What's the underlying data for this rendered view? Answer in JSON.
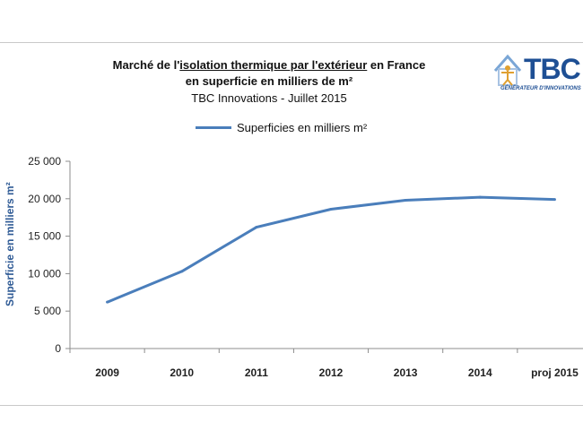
{
  "header": {
    "title_prefix": "Marché de l'",
    "title_underlined_1": "isolation  thermique par l'extérieur",
    "title_suffix": " en France",
    "title_line2": "en superficie  en milliers de m²",
    "subtitle": "TBC Innovations - Juillet 2015"
  },
  "logo": {
    "text": "TBC",
    "tagline": "GÉNÉRATEUR D'INNOVATIONS",
    "color": "#1e4f94"
  },
  "chart_data": {
    "type": "line",
    "title": "Marché de l'isolation  thermique par l'extérieur en France en superficie  en milliers de m²",
    "subtitle": "TBC Innovations - Juillet 2015",
    "categories": [
      "2009",
      "2010",
      "2011",
      "2012",
      "2013",
      "2014",
      "proj 2015"
    ],
    "series": [
      {
        "name": "Superficies en milliers m²",
        "values": [
          6200,
          10300,
          16200,
          18600,
          19800,
          20200,
          19900
        ],
        "color": "#4a7ebb"
      }
    ],
    "xlabel": "",
    "ylabel": "Superficie en milliers m²",
    "ylim": [
      0,
      25000
    ],
    "yticks": [
      0,
      5000,
      10000,
      15000,
      20000,
      25000
    ],
    "ytick_labels": [
      "0",
      "5 000",
      "10 000",
      "15 000",
      "20 000",
      "25 000"
    ],
    "grid": false,
    "legend_position": "top"
  }
}
